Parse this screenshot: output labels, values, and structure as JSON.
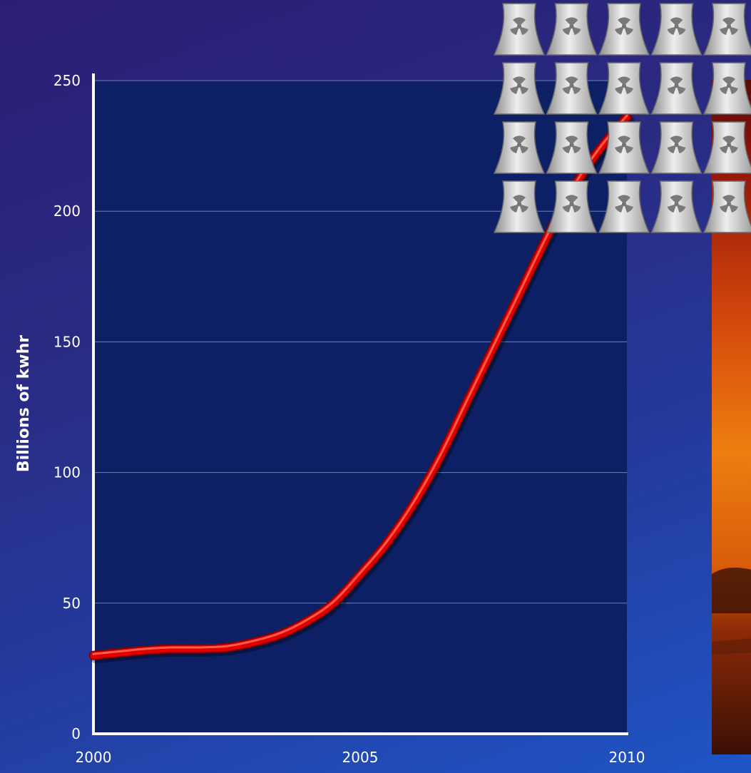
{
  "chart_data": {
    "type": "line",
    "title": "",
    "xlabel": "",
    "ylabel": "Billions of kwhr",
    "xlim": [
      2000,
      2010
    ],
    "ylim": [
      0,
      250
    ],
    "x_ticks": [
      2000,
      2005,
      2010
    ],
    "y_ticks": [
      0,
      50,
      100,
      150,
      200,
      250
    ],
    "grid": true,
    "series": [
      {
        "color": "#e00000",
        "x": [
          2000,
          2000.5,
          2001,
          2001.5,
          2002,
          2002.5,
          2003,
          2003.5,
          2004,
          2004.5,
          2005,
          2005.5,
          2006,
          2006.5,
          2007,
          2007.5,
          2008,
          2008.5,
          2009,
          2009.5,
          2010
        ],
        "y": [
          30,
          31,
          32,
          32.5,
          32.5,
          33,
          35,
          38,
          43,
          50,
          61,
          73,
          88,
          106,
          127,
          148,
          169,
          190,
          209,
          224,
          236
        ]
      }
    ]
  },
  "decoration": {
    "plant_icon": "nuclear-cooling-tower-icon",
    "plant_rows": 4,
    "plant_cols": 5,
    "photo": "sunset-photo"
  }
}
